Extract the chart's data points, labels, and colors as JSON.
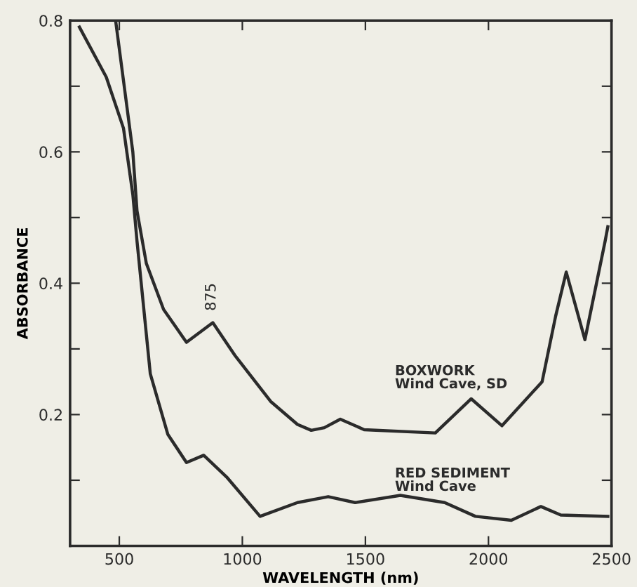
{
  "chart_data": {
    "type": "line",
    "xlabel": "WAVELENGTH (nm)",
    "ylabel": "ABSORBANCE",
    "xlim": [
      300,
      2500
    ],
    "ylim": [
      0,
      0.8
    ],
    "xticks": [
      500,
      1000,
      1500,
      2000,
      2500
    ],
    "yticks": [
      {
        "value": 0.1,
        "label": null
      },
      0.2,
      {
        "value": 0.3,
        "label": null
      },
      0.4,
      {
        "value": 0.5,
        "label": null
      },
      0.6,
      {
        "value": 0.7,
        "label": null
      },
      0.8
    ],
    "grid": false,
    "legend": false,
    "marker": "none",
    "line_style": "solid",
    "annotations": [
      {
        "text": "875",
        "x": 875,
        "y": 0.34
      }
    ],
    "series": [
      {
        "name": "BOXWORK\nWind Cave, SD",
        "color": "#2b2b2b",
        "x": [
          485,
          555,
          572,
          610,
          680,
          773,
          880,
          970,
          1115,
          1224,
          1280,
          1333,
          1398,
          1495,
          1784,
          1930,
          2055,
          2218,
          2273,
          2316,
          2392,
          2474,
          2485
        ],
        "values": [
          0.8,
          0.6,
          0.51,
          0.43,
          0.36,
          0.31,
          0.34,
          0.29,
          0.22,
          0.185,
          0.176,
          0.18,
          0.193,
          0.177,
          0.172,
          0.224,
          0.183,
          0.25,
          0.35,
          0.417,
          0.314,
          0.464,
          0.486
        ]
      },
      {
        "name": "RED SEDIMENT\nWind Cave",
        "color": "#2b2b2b",
        "x": [
          338,
          447,
          517,
          555,
          572,
          626,
          697,
          773,
          843,
          936,
          1072,
          1224,
          1349,
          1458,
          1642,
          1822,
          1947,
          2093,
          2213,
          2294,
          2485
        ],
        "values": [
          0.79,
          0.714,
          0.636,
          0.535,
          0.464,
          0.262,
          0.17,
          0.127,
          0.138,
          0.105,
          0.045,
          0.066,
          0.075,
          0.066,
          0.077,
          0.066,
          0.045,
          0.039,
          0.06,
          0.047,
          0.045
        ]
      }
    ]
  }
}
